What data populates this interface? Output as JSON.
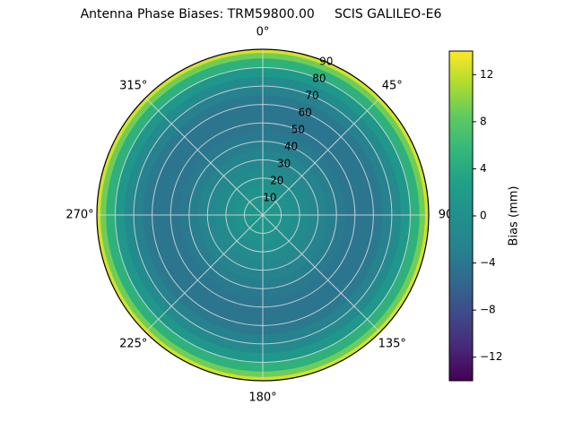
{
  "title": "Antenna Phase Biases: TRM59800.00     SCIS GALILEO-E6",
  "chart_data": {
    "type": "heatmap",
    "projection": "polar",
    "theta_zero_location": "top",
    "theta_direction": "clockwise",
    "angle_tick_labels": [
      "0°",
      "45°",
      "90",
      "135°",
      "180°",
      "225°",
      "270°",
      "315°"
    ],
    "angle_tick_degrees": [
      0,
      45,
      90,
      135,
      180,
      225,
      270,
      315
    ],
    "radial_tick_labels": [
      10,
      20,
      30,
      40,
      50,
      60,
      70,
      80,
      90
    ],
    "radial_max": 90,
    "radial_label_angle_deg": 22.5,
    "azimuthally_symmetric": true,
    "zenith_profile": {
      "zenith_deg": [
        0,
        5,
        10,
        15,
        20,
        25,
        30,
        35,
        40,
        45,
        50,
        55,
        60,
        65,
        70,
        75,
        80,
        85,
        88,
        90
      ],
      "bias_mm": [
        1.4,
        1.2,
        0.8,
        0.3,
        -0.4,
        -1.2,
        -2.0,
        -2.8,
        -3.4,
        -3.9,
        -4.2,
        -4.3,
        -4.1,
        -3.4,
        -2.2,
        -0.3,
        2.8,
        7.0,
        11.0,
        14.0
      ]
    },
    "colorbar": {
      "label": "Bias (mm)",
      "ticks": [
        12,
        8,
        4,
        0,
        -4,
        -8,
        -12
      ],
      "vmin": -14,
      "vmax": 14
    },
    "colormap": {
      "name": "viridis",
      "stops": [
        "#440154",
        "#482878",
        "#3e4a89",
        "#31688e",
        "#26828e",
        "#21908d",
        "#1fa088",
        "#35b779",
        "#5ec962",
        "#addc30",
        "#fde725"
      ]
    },
    "grid": {
      "color": "#dcdcdc",
      "outer_edge_color": "#000000"
    }
  }
}
